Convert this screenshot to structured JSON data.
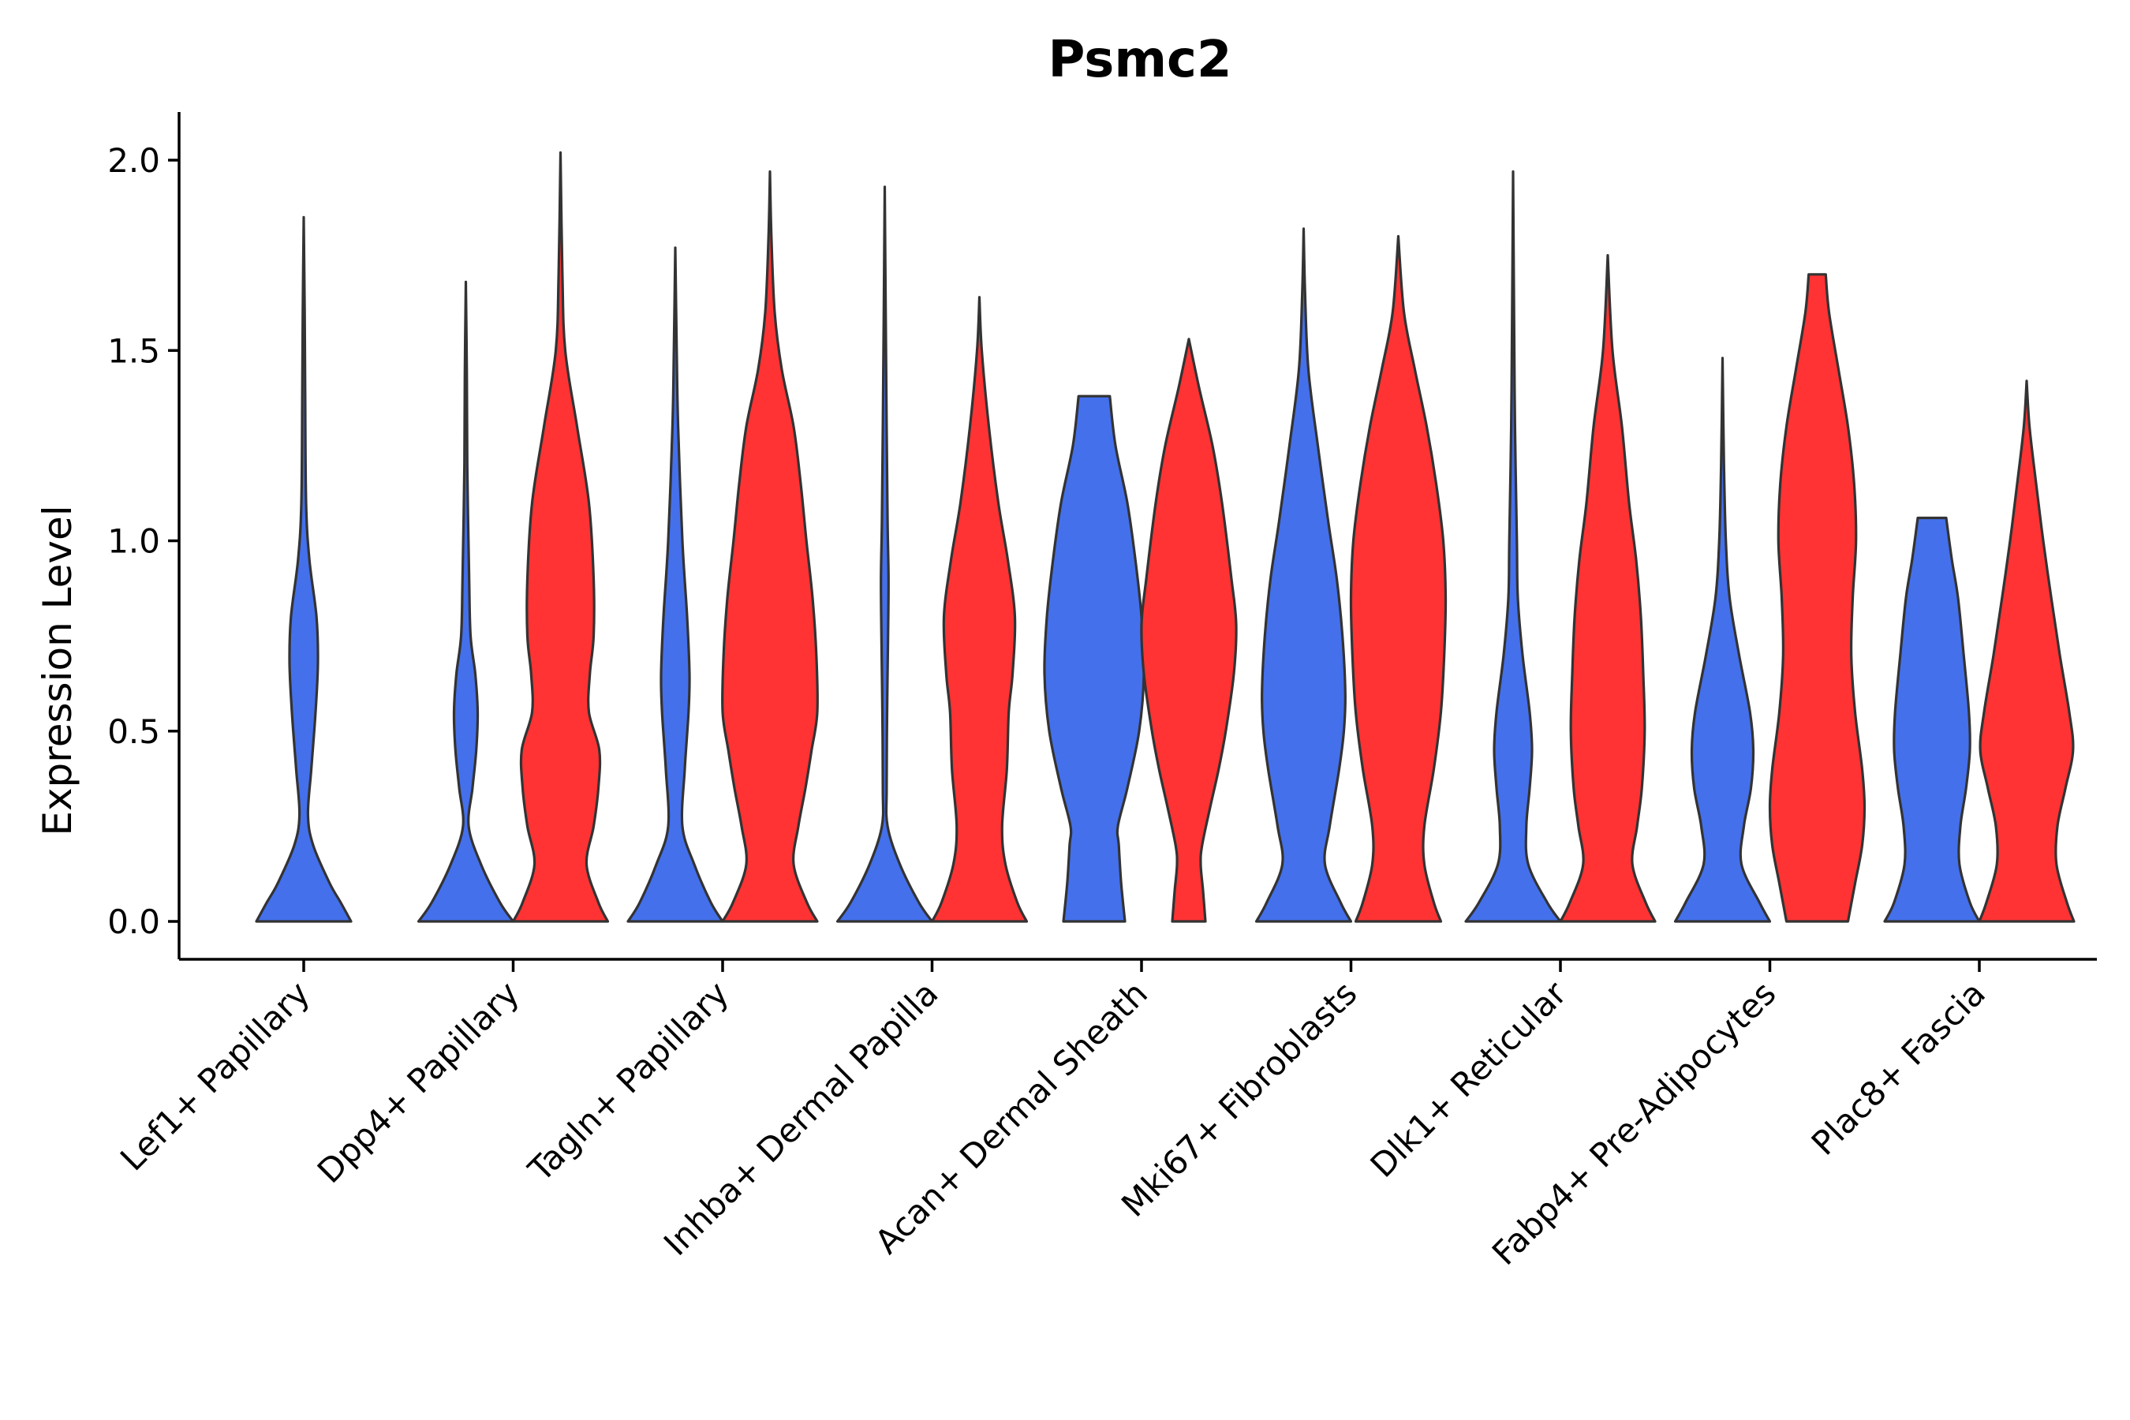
{
  "chart_data": {
    "type": "violin",
    "title": "Psmc2",
    "xlabel": "",
    "ylabel": "Expression Level",
    "ylim": [
      -0.1,
      2.12
    ],
    "yticks": [
      "0.0",
      "0.5",
      "1.0",
      "1.5",
      "2.0"
    ],
    "ytick_values": [
      0.0,
      0.5,
      1.0,
      1.5,
      2.0
    ],
    "colors": {
      "group_a": "#4470EC",
      "group_b": "#FF3333",
      "outline": "#333333"
    },
    "categories": [
      "Lef1+ Papillary",
      "Dpp4+ Papillary",
      "Tagln+ Papillary",
      "Inhba+ Dermal Papilla",
      "Acan+ Dermal Sheath",
      "Mki67+ Fibroblasts",
      "Dlk1+ Reticular",
      "Fabp4+ Pre-Adipocytes",
      "Plac8+ Fascia"
    ],
    "violins": [
      {
        "category": "Lef1+ Papillary",
        "group": "a",
        "max": 1.85,
        "profile": [
          [
            0,
            1.0
          ],
          [
            0.05,
            0.78
          ],
          [
            0.1,
            0.55
          ],
          [
            0.2,
            0.2
          ],
          [
            0.28,
            0.09
          ],
          [
            0.4,
            0.16
          ],
          [
            0.55,
            0.25
          ],
          [
            0.68,
            0.3
          ],
          [
            0.8,
            0.27
          ],
          [
            0.95,
            0.12
          ],
          [
            1.1,
            0.05
          ],
          [
            1.4,
            0.03
          ],
          [
            1.6,
            0.02
          ],
          [
            1.85,
            0.0
          ]
        ]
      },
      {
        "category": "Dpp4+ Papillary",
        "group": "a",
        "max": 1.68,
        "profile": [
          [
            0,
            1.0
          ],
          [
            0.05,
            0.72
          ],
          [
            0.15,
            0.32
          ],
          [
            0.25,
            0.06
          ],
          [
            0.35,
            0.14
          ],
          [
            0.45,
            0.22
          ],
          [
            0.55,
            0.25
          ],
          [
            0.65,
            0.2
          ],
          [
            0.75,
            0.1
          ],
          [
            0.9,
            0.07
          ],
          [
            1.2,
            0.03
          ],
          [
            1.45,
            0.02
          ],
          [
            1.68,
            0.0
          ]
        ]
      },
      {
        "category": "Dpp4+ Papillary",
        "group": "b",
        "max": 2.02,
        "profile": [
          [
            0,
            1.0
          ],
          [
            0.05,
            0.8
          ],
          [
            0.15,
            0.55
          ],
          [
            0.25,
            0.7
          ],
          [
            0.35,
            0.8
          ],
          [
            0.45,
            0.82
          ],
          [
            0.55,
            0.6
          ],
          [
            0.65,
            0.62
          ],
          [
            0.75,
            0.7
          ],
          [
            0.9,
            0.7
          ],
          [
            1.1,
            0.6
          ],
          [
            1.3,
            0.35
          ],
          [
            1.5,
            0.1
          ],
          [
            1.7,
            0.04
          ],
          [
            2.02,
            0.0
          ]
        ]
      },
      {
        "category": "Tagln+ Papillary",
        "group": "a",
        "max": 1.77,
        "profile": [
          [
            0,
            1.0
          ],
          [
            0.05,
            0.75
          ],
          [
            0.15,
            0.4
          ],
          [
            0.25,
            0.15
          ],
          [
            0.4,
            0.2
          ],
          [
            0.55,
            0.28
          ],
          [
            0.65,
            0.3
          ],
          [
            0.8,
            0.25
          ],
          [
            1.0,
            0.15
          ],
          [
            1.3,
            0.06
          ],
          [
            1.5,
            0.03
          ],
          [
            1.77,
            0.0
          ]
        ]
      },
      {
        "category": "Tagln+ Papillary",
        "group": "b",
        "max": 1.97,
        "profile": [
          [
            0,
            1.0
          ],
          [
            0.05,
            0.78
          ],
          [
            0.15,
            0.5
          ],
          [
            0.25,
            0.6
          ],
          [
            0.35,
            0.75
          ],
          [
            0.45,
            0.88
          ],
          [
            0.55,
            1.0
          ],
          [
            0.7,
            0.98
          ],
          [
            0.85,
            0.9
          ],
          [
            1.0,
            0.77
          ],
          [
            1.15,
            0.65
          ],
          [
            1.3,
            0.5
          ],
          [
            1.45,
            0.25
          ],
          [
            1.6,
            0.1
          ],
          [
            1.8,
            0.03
          ],
          [
            1.97,
            0.0
          ]
        ]
      },
      {
        "category": "Inhba+ Dermal Papilla",
        "group": "a",
        "max": 1.93,
        "profile": [
          [
            0,
            1.0
          ],
          [
            0.05,
            0.72
          ],
          [
            0.15,
            0.32
          ],
          [
            0.25,
            0.06
          ],
          [
            0.35,
            0.04
          ],
          [
            0.55,
            0.05
          ],
          [
            0.75,
            0.07
          ],
          [
            0.9,
            0.08
          ],
          [
            1.05,
            0.06
          ],
          [
            1.3,
            0.04
          ],
          [
            1.6,
            0.02
          ],
          [
            1.93,
            0.0
          ]
        ]
      },
      {
        "category": "Inhba+ Dermal Papilla",
        "group": "b",
        "max": 1.64,
        "profile": [
          [
            0,
            1.0
          ],
          [
            0.05,
            0.8
          ],
          [
            0.15,
            0.55
          ],
          [
            0.25,
            0.48
          ],
          [
            0.4,
            0.58
          ],
          [
            0.55,
            0.62
          ],
          [
            0.65,
            0.7
          ],
          [
            0.8,
            0.75
          ],
          [
            0.95,
            0.6
          ],
          [
            1.1,
            0.4
          ],
          [
            1.3,
            0.2
          ],
          [
            1.5,
            0.05
          ],
          [
            1.64,
            0.0
          ]
        ]
      },
      {
        "category": "Acan+ Dermal Sheath",
        "group": "a",
        "max": 1.38,
        "profile": [
          [
            0,
            0.65
          ],
          [
            0.1,
            0.57
          ],
          [
            0.2,
            0.52
          ],
          [
            0.25,
            0.5
          ],
          [
            0.35,
            0.7
          ],
          [
            0.5,
            0.95
          ],
          [
            0.65,
            1.05
          ],
          [
            0.8,
            1.0
          ],
          [
            0.95,
            0.87
          ],
          [
            1.1,
            0.7
          ],
          [
            1.25,
            0.45
          ],
          [
            1.38,
            0.33
          ]
        ]
      },
      {
        "category": "Acan+ Dermal Sheath",
        "group": "b",
        "max": 1.53,
        "profile": [
          [
            0,
            0.35
          ],
          [
            0.08,
            0.3
          ],
          [
            0.15,
            0.25
          ],
          [
            0.2,
            0.28
          ],
          [
            0.3,
            0.45
          ],
          [
            0.4,
            0.63
          ],
          [
            0.5,
            0.78
          ],
          [
            0.65,
            0.95
          ],
          [
            0.78,
            1.0
          ],
          [
            0.9,
            0.9
          ],
          [
            1.1,
            0.7
          ],
          [
            1.25,
            0.5
          ],
          [
            1.4,
            0.22
          ],
          [
            1.53,
            0.0
          ]
        ]
      },
      {
        "category": "Mki67+ Fibroblasts",
        "group": "a",
        "max": 1.82,
        "profile": [
          [
            0,
            1.0
          ],
          [
            0.05,
            0.78
          ],
          [
            0.15,
            0.45
          ],
          [
            0.25,
            0.55
          ],
          [
            0.4,
            0.75
          ],
          [
            0.5,
            0.85
          ],
          [
            0.6,
            0.88
          ],
          [
            0.75,
            0.82
          ],
          [
            0.9,
            0.7
          ],
          [
            1.05,
            0.52
          ],
          [
            1.25,
            0.3
          ],
          [
            1.45,
            0.1
          ],
          [
            1.65,
            0.03
          ],
          [
            1.82,
            0.0
          ]
        ]
      },
      {
        "category": "Mki67+ Fibroblasts",
        "group": "b",
        "max": 1.8,
        "profile": [
          [
            0,
            0.9
          ],
          [
            0.05,
            0.75
          ],
          [
            0.15,
            0.55
          ],
          [
            0.25,
            0.55
          ],
          [
            0.4,
            0.75
          ],
          [
            0.55,
            0.9
          ],
          [
            0.7,
            0.97
          ],
          [
            0.85,
            1.0
          ],
          [
            1.0,
            0.95
          ],
          [
            1.15,
            0.8
          ],
          [
            1.3,
            0.6
          ],
          [
            1.45,
            0.35
          ],
          [
            1.6,
            0.12
          ],
          [
            1.8,
            0.0
          ]
        ]
      },
      {
        "category": "Dlk1+ Reticular",
        "group": "a",
        "max": 1.97,
        "profile": [
          [
            0,
            1.0
          ],
          [
            0.05,
            0.72
          ],
          [
            0.15,
            0.32
          ],
          [
            0.25,
            0.28
          ],
          [
            0.35,
            0.35
          ],
          [
            0.45,
            0.4
          ],
          [
            0.55,
            0.35
          ],
          [
            0.7,
            0.2
          ],
          [
            0.85,
            0.1
          ],
          [
            1.0,
            0.08
          ],
          [
            1.3,
            0.04
          ],
          [
            1.6,
            0.02
          ],
          [
            1.97,
            0.0
          ]
        ]
      },
      {
        "category": "Dlk1+ Reticular",
        "group": "b",
        "max": 1.75,
        "profile": [
          [
            0,
            1.0
          ],
          [
            0.05,
            0.8
          ],
          [
            0.15,
            0.52
          ],
          [
            0.25,
            0.62
          ],
          [
            0.35,
            0.72
          ],
          [
            0.5,
            0.78
          ],
          [
            0.65,
            0.75
          ],
          [
            0.8,
            0.7
          ],
          [
            0.95,
            0.6
          ],
          [
            1.1,
            0.45
          ],
          [
            1.3,
            0.3
          ],
          [
            1.5,
            0.1
          ],
          [
            1.75,
            0.0
          ]
        ]
      },
      {
        "category": "Fabp4+ Pre-Adipocytes",
        "group": "a",
        "max": 1.48,
        "profile": [
          [
            0,
            1.0
          ],
          [
            0.05,
            0.78
          ],
          [
            0.15,
            0.4
          ],
          [
            0.25,
            0.45
          ],
          [
            0.35,
            0.6
          ],
          [
            0.45,
            0.65
          ],
          [
            0.55,
            0.58
          ],
          [
            0.7,
            0.35
          ],
          [
            0.85,
            0.15
          ],
          [
            1.0,
            0.07
          ],
          [
            1.2,
            0.03
          ],
          [
            1.48,
            0.0
          ]
        ]
      },
      {
        "category": "Fabp4+ Pre-Adipocytes",
        "group": "b",
        "max": 1.7,
        "profile": [
          [
            0,
            0.65
          ],
          [
            0.1,
            0.8
          ],
          [
            0.2,
            0.95
          ],
          [
            0.3,
            1.0
          ],
          [
            0.4,
            0.95
          ],
          [
            0.55,
            0.8
          ],
          [
            0.7,
            0.72
          ],
          [
            0.85,
            0.75
          ],
          [
            1.0,
            0.82
          ],
          [
            1.15,
            0.78
          ],
          [
            1.3,
            0.65
          ],
          [
            1.45,
            0.45
          ],
          [
            1.6,
            0.25
          ],
          [
            1.7,
            0.18
          ]
        ]
      },
      {
        "category": "Plac8+ Fascia",
        "group": "a",
        "max": 1.06,
        "profile": [
          [
            0,
            1.0
          ],
          [
            0.05,
            0.8
          ],
          [
            0.15,
            0.58
          ],
          [
            0.25,
            0.6
          ],
          [
            0.35,
            0.72
          ],
          [
            0.45,
            0.8
          ],
          [
            0.55,
            0.78
          ],
          [
            0.7,
            0.67
          ],
          [
            0.85,
            0.55
          ],
          [
            0.95,
            0.42
          ],
          [
            1.06,
            0.3
          ]
        ]
      },
      {
        "category": "Plac8+ Fascia",
        "group": "b",
        "max": 1.42,
        "profile": [
          [
            0,
            1.0
          ],
          [
            0.05,
            0.85
          ],
          [
            0.15,
            0.63
          ],
          [
            0.25,
            0.65
          ],
          [
            0.35,
            0.82
          ],
          [
            0.45,
            0.98
          ],
          [
            0.55,
            0.9
          ],
          [
            0.7,
            0.7
          ],
          [
            0.85,
            0.52
          ],
          [
            1.0,
            0.35
          ],
          [
            1.15,
            0.2
          ],
          [
            1.3,
            0.06
          ],
          [
            1.42,
            0.0
          ]
        ]
      }
    ]
  }
}
